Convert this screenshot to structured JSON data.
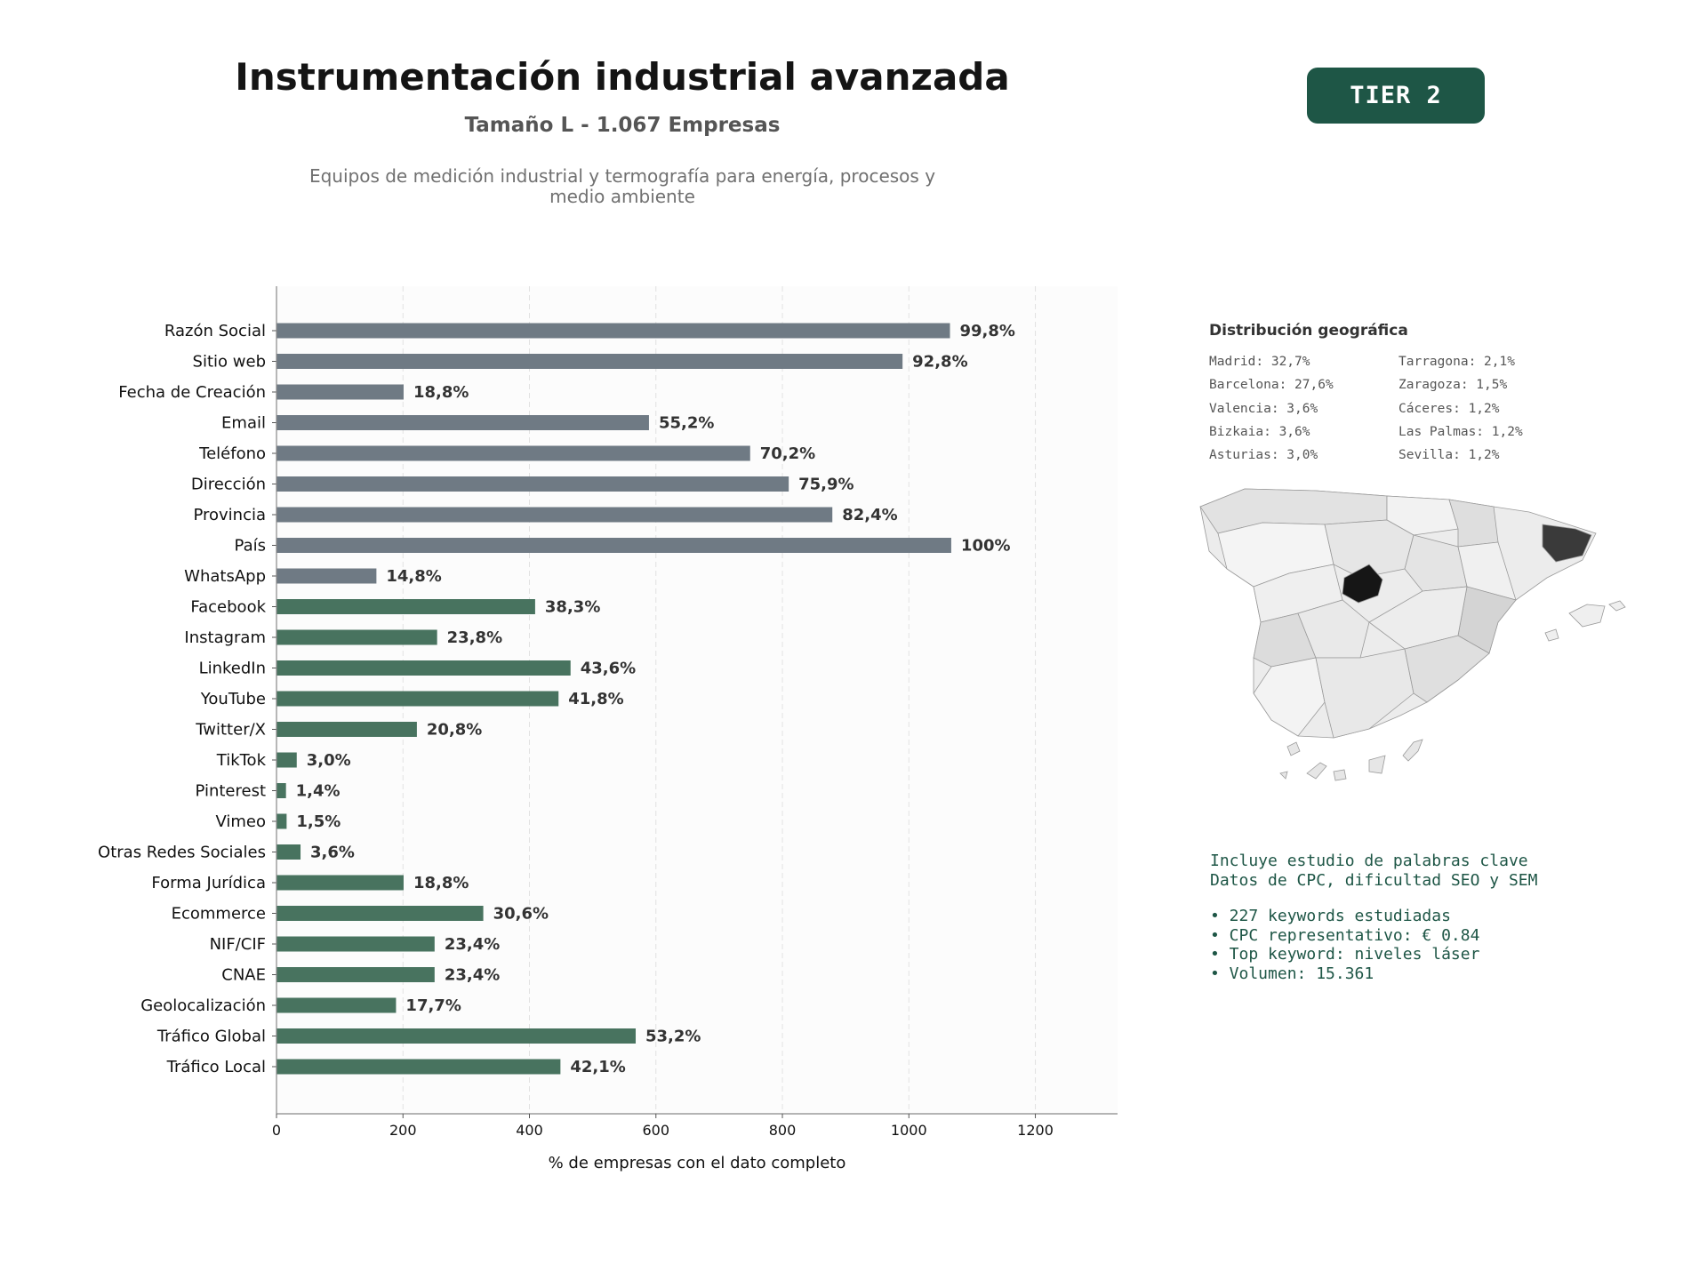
{
  "header": {
    "title": "Instrumentación industrial avanzada",
    "subtitle": "Tamaño L - 1.067 Empresas",
    "description": "Equipos de medición industrial y termografía para energía, procesos y medio ambiente",
    "badge": "TIER 2"
  },
  "colors": {
    "gray_bar": "#6f7a84",
    "green_bar": "#48735f",
    "badge": "#1e5646",
    "text_green": "#1e5646"
  },
  "chart_data": {
    "type": "bar",
    "orientation": "horizontal",
    "categories": [
      "Razón Social",
      "Sitio web",
      "Fecha de Creación",
      "Email",
      "Teléfono",
      "Dirección",
      "Provincia",
      "País",
      "WhatsApp",
      "Facebook",
      "Instagram",
      "LinkedIn",
      "YouTube",
      "Twitter/X",
      "TikTok",
      "Pinterest",
      "Vimeo",
      "Otras Redes Sociales",
      "Forma Jurídica",
      "Ecommerce",
      "NIF/CIF",
      "CNAE",
      "Geolocalización",
      "Tráfico Global",
      "Tráfico Local"
    ],
    "values": [
      1065,
      990,
      201,
      589,
      749,
      810,
      879,
      1067,
      158,
      409,
      254,
      465,
      446,
      222,
      32,
      15,
      16,
      38,
      201,
      327,
      250,
      250,
      189,
      568,
      449
    ],
    "labels": [
      "99,8%",
      "92,8%",
      "18,8%",
      "55,2%",
      "70,2%",
      "75,9%",
      "82,4%",
      "100%",
      "14,8%",
      "38,3%",
      "23,8%",
      "43,6%",
      "41,8%",
      "20,8%",
      "3,0%",
      "1,4%",
      "1,5%",
      "3,6%",
      "18,8%",
      "30,6%",
      "23,4%",
      "23,4%",
      "17,7%",
      "53,2%",
      "42,1%"
    ],
    "groups": [
      "gray",
      "gray",
      "gray",
      "gray",
      "gray",
      "gray",
      "gray",
      "gray",
      "gray",
      "green",
      "green",
      "green",
      "green",
      "green",
      "green",
      "green",
      "green",
      "green",
      "green",
      "green",
      "green",
      "green",
      "green",
      "green",
      "green"
    ],
    "xlabel": "% de empresas con el dato completo",
    "ylabel": "",
    "xlim": [
      0,
      1330
    ],
    "xticks": [
      0,
      200,
      400,
      600,
      800,
      1000,
      1200
    ],
    "grid": "vertical dashed"
  },
  "geo": {
    "title": "Distribución geográfica",
    "col1": [
      "Madrid: 32,7%",
      "Barcelona: 27,6%",
      "Valencia: 3,6%",
      "Bizkaia: 3,6%",
      "Asturias: 3,0%"
    ],
    "col2": [
      "Tarragona: 2,1%",
      "Zaragoza: 1,5%",
      "Cáceres: 1,2%",
      "Las Palmas: 1,2%",
      "Sevilla: 1,2%"
    ]
  },
  "seo": {
    "line1": "Incluye estudio de palabras clave",
    "line2": "Datos de CPC, dificultad SEO y SEM",
    "bullets": [
      "• 227 keywords estudiadas",
      "• CPC representativo: € 0.84",
      "• Top keyword: niveles láser",
      "• Volumen: 15.361"
    ]
  }
}
